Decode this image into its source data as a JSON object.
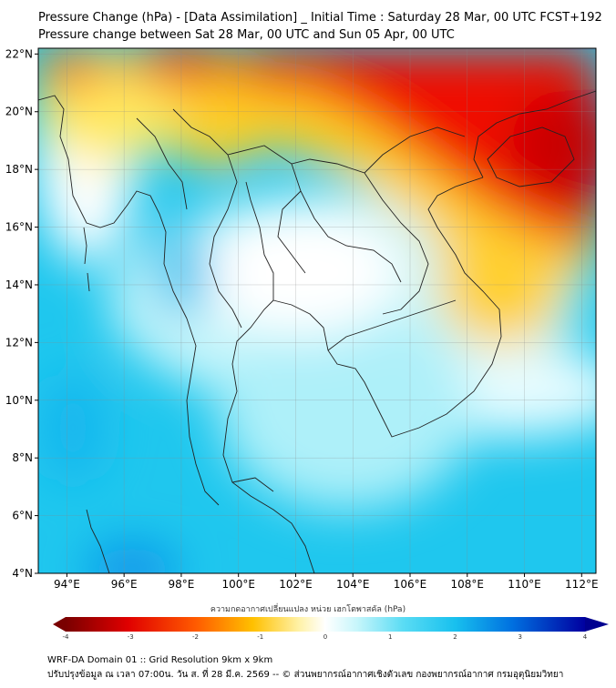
{
  "title_line1": "Pressure Change (hPa) - [Data Assimilation] _ Initial Time : Saturday 28 Mar, 00 UTC FCST+192",
  "title_line2": "Pressure change between Sat 28 Mar, 00 UTC and Sun 05 Apr, 00 UTC",
  "map": {
    "lon_range": [
      93,
      112.5
    ],
    "lat_range": [
      4,
      22.2
    ],
    "lon_ticks": [
      "94°E",
      "96°E",
      "98°E",
      "100°E",
      "102°E",
      "104°E",
      "106°E",
      "108°E",
      "110°E",
      "112°E"
    ],
    "lat_ticks": [
      "22°N",
      "20°N",
      "18°N",
      "16°N",
      "14°N",
      "12°N",
      "10°N",
      "8°N",
      "6°N",
      "4°N"
    ],
    "grid": true
  },
  "colorbar": {
    "title": "ความกดอากาศเปลี่ยนแปลง หน่วย เฮกโตพาสคัล (hPa)",
    "tick_labels": [
      "-4",
      "-3",
      "-2",
      "-1",
      "0",
      "1",
      "2",
      "3",
      "4"
    ],
    "range": [
      -4,
      4
    ],
    "extend": "both"
  },
  "colors": {
    "strong_negative": "#e00000",
    "negative": "#ffcc20",
    "neutral": "#ffffff",
    "positive": "#1cc8ee",
    "strong_positive": "#0000c0"
  },
  "footer_line1": "WRF-DA Domain 01 :: Grid Resolution 9km x 9km",
  "footer_line2": "ปรับปรุงข้อมูล ณ เวลา 07:00น. วัน ส. ที่ 28 มี.ค. 2569 -- © ส่วนพยากรณ์อากาศเชิงตัวเลข กองพยากรณ์อากาศ กรมอุตุนิยมวิทยา"
}
